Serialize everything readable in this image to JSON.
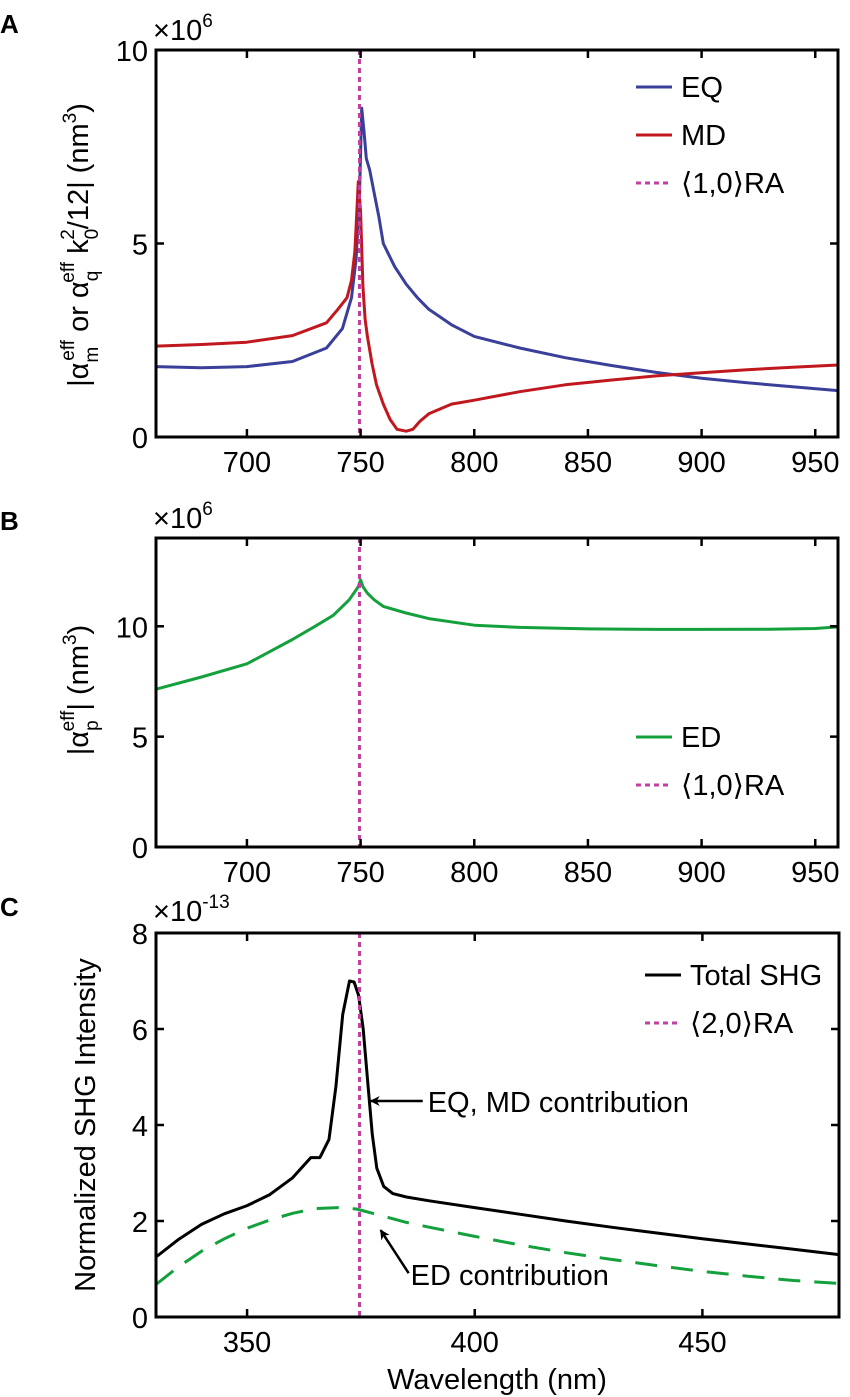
{
  "chart_data": [
    {
      "panel": "A",
      "type": "line",
      "xlabel": "",
      "ylabel": "|α_m^eff or α_q^eff k_0^2/12| (nm^3)",
      "ylabel_parts": {
        "pre": "|α",
        "sub1": "m",
        "sup1": "eff",
        "mid": " or  α",
        "sub2": "q",
        "sup2": "eff",
        "k": " k",
        "sub3": "0",
        "sup3": "2",
        "post": "/12| (nm",
        "sup4": "3",
        "end": ")"
      },
      "multiplier": "10",
      "multiplier_exp": "6",
      "xlim": [
        660,
        960
      ],
      "ylim": [
        0,
        10
      ],
      "xticks": [
        700,
        750,
        800,
        850,
        900,
        950
      ],
      "yticks": [
        0,
        5,
        10
      ],
      "vline": {
        "x": 749.5,
        "label": "⟨1,0⟩RA",
        "color": "#c040a0"
      },
      "legend_position": "top-right",
      "series": [
        {
          "name": "EQ",
          "color": "#3a3f9a",
          "x": [
            660,
            680,
            700,
            720,
            735,
            742,
            746,
            748,
            749.5,
            750.5,
            751.5,
            752.5,
            754,
            756,
            758,
            760,
            765,
            770,
            775,
            780,
            790,
            800,
            820,
            840,
            860,
            880,
            900,
            920,
            940,
            960
          ],
          "y": [
            1.82,
            1.79,
            1.82,
            1.95,
            2.3,
            2.8,
            3.6,
            4.6,
            6.2,
            8.5,
            7.9,
            7.2,
            6.9,
            6.3,
            5.7,
            5.0,
            4.4,
            3.95,
            3.6,
            3.3,
            2.9,
            2.6,
            2.3,
            2.05,
            1.85,
            1.67,
            1.52,
            1.4,
            1.3,
            1.2
          ]
        },
        {
          "name": "MD",
          "color": "#c0181e",
          "x": [
            660,
            680,
            700,
            720,
            735,
            740,
            744,
            746,
            747.5,
            749,
            750,
            751,
            752,
            753,
            755,
            757,
            760,
            763,
            766,
            770,
            773,
            776,
            780,
            790,
            800,
            820,
            840,
            860,
            880,
            900,
            920,
            940,
            960
          ],
          "y": [
            2.35,
            2.39,
            2.45,
            2.62,
            2.95,
            3.3,
            3.6,
            4.05,
            4.8,
            6.6,
            5.8,
            3.9,
            3.05,
            2.6,
            1.9,
            1.35,
            0.85,
            0.45,
            0.2,
            0.15,
            0.2,
            0.4,
            0.6,
            0.85,
            0.95,
            1.17,
            1.35,
            1.47,
            1.58,
            1.66,
            1.74,
            1.8,
            1.86
          ]
        }
      ]
    },
    {
      "panel": "B",
      "type": "line",
      "xlabel": "",
      "ylabel": "|α_p^eff| (nm^3)",
      "ylabel_parts": {
        "pre": "|α",
        "sub1": "p",
        "sup1": "eff",
        "post": "| (nm",
        "sup4": "3",
        "end": ")"
      },
      "multiplier": "10",
      "multiplier_exp": "6",
      "xlim": [
        660,
        960
      ],
      "ylim": [
        0,
        14
      ],
      "xticks": [
        700,
        750,
        800,
        850,
        900,
        950
      ],
      "yticks": [
        0,
        5,
        10
      ],
      "vline": {
        "x": 749.5,
        "label": "⟨1,0⟩RA",
        "color": "#c040a0"
      },
      "legend_position": "lower-right",
      "series": [
        {
          "name": "ED",
          "color": "#14a03c",
          "x": [
            660,
            680,
            700,
            710,
            720,
            730,
            738,
            742,
            745,
            747,
            749,
            750,
            751,
            753,
            756,
            760,
            770,
            780,
            800,
            820,
            850,
            880,
            900,
            930,
            950,
            960
          ],
          "y": [
            7.15,
            7.7,
            8.3,
            8.85,
            9.4,
            10.0,
            10.5,
            10.9,
            11.2,
            11.5,
            11.8,
            12.1,
            11.8,
            11.5,
            11.2,
            10.9,
            10.6,
            10.35,
            10.05,
            9.95,
            9.88,
            9.86,
            9.86,
            9.87,
            9.9,
            9.97
          ]
        }
      ]
    },
    {
      "panel": "C",
      "type": "line",
      "xlabel": "Wavelength (nm)",
      "ylabel": "Normalized SHG Intensity",
      "multiplier": "10",
      "multiplier_exp": "-13",
      "xlim": [
        330,
        480
      ],
      "ylim": [
        0,
        8
      ],
      "xticks": [
        350,
        400,
        450
      ],
      "yticks": [
        0,
        2,
        4,
        6,
        8
      ],
      "vline": {
        "x": 374.7,
        "label": "⟨2,0⟩RA",
        "color": "#c040a0"
      },
      "legend_position": "top-right",
      "series": [
        {
          "name": "Total SHG",
          "color": "#000000",
          "dash": "solid",
          "x": [
            330,
            335,
            340,
            345,
            350,
            355,
            360,
            364,
            366,
            368,
            369.5,
            371,
            372.5,
            373.5,
            374.5,
            375.5,
            376.5,
            377.5,
            378.5,
            380,
            382,
            385,
            390,
            400,
            410,
            420,
            430,
            440,
            450,
            460,
            470,
            480
          ],
          "y": [
            1.25,
            1.62,
            1.93,
            2.15,
            2.32,
            2.55,
            2.9,
            3.32,
            3.32,
            3.7,
            4.8,
            6.3,
            7.0,
            6.98,
            6.7,
            6.0,
            4.9,
            3.8,
            3.1,
            2.72,
            2.57,
            2.5,
            2.42,
            2.28,
            2.14,
            2.0,
            1.87,
            1.75,
            1.63,
            1.52,
            1.41,
            1.3
          ]
        },
        {
          "name": "ED contribution",
          "color": "#14a03c",
          "dash": "dashed",
          "in_legend": false,
          "x": [
            330,
            335,
            340,
            345,
            350,
            355,
            360,
            365,
            370,
            374,
            378,
            385,
            390,
            400,
            410,
            420,
            430,
            440,
            450,
            460,
            470,
            480
          ],
          "y": [
            0.68,
            1.05,
            1.37,
            1.63,
            1.85,
            2.02,
            2.16,
            2.26,
            2.28,
            2.25,
            2.15,
            1.97,
            1.87,
            1.68,
            1.5,
            1.34,
            1.2,
            1.07,
            0.95,
            0.85,
            0.76,
            0.7
          ]
        }
      ],
      "annotations": [
        {
          "text": "EQ, MD contribution",
          "arrow": "left",
          "target_x": 376.5,
          "target_y": 4.5
        },
        {
          "text": "ED contribution",
          "arrow": "up-left",
          "target_x": 380,
          "target_y": 1.85
        }
      ]
    }
  ],
  "panels": {
    "A": {
      "label": "A"
    },
    "B": {
      "label": "B"
    },
    "C": {
      "label": "C"
    }
  }
}
